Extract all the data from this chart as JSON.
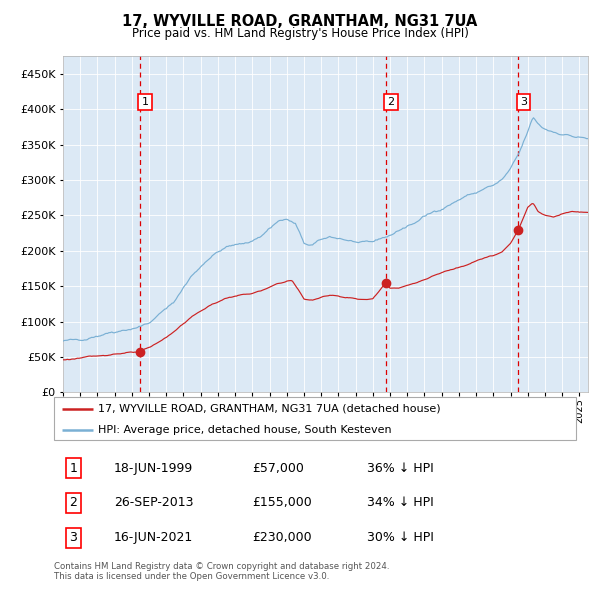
{
  "title": "17, WYVILLE ROAD, GRANTHAM, NG31 7UA",
  "subtitle": "Price paid vs. HM Land Registry's House Price Index (HPI)",
  "legend_line1": "17, WYVILLE ROAD, GRANTHAM, NG31 7UA (detached house)",
  "legend_line2": "HPI: Average price, detached house, South Kesteven",
  "transactions": [
    {
      "label": "1",
      "date_num": 1999.458,
      "price": 57000,
      "date_str": "18-JUN-1999",
      "note": "36% ↓ HPI"
    },
    {
      "label": "2",
      "date_num": 2013.736,
      "price": 155000,
      "date_str": "26-SEP-2013",
      "note": "34% ↓ HPI"
    },
    {
      "label": "3",
      "date_num": 2021.458,
      "price": 230000,
      "date_str": "16-JUN-2021",
      "note": "30% ↓ HPI"
    }
  ],
  "footer1": "Contains HM Land Registry data © Crown copyright and database right 2024.",
  "footer2": "This data is licensed under the Open Government Licence v3.0.",
  "hpi_color": "#7ab0d4",
  "price_color": "#cc2222",
  "dashed_color": "#dd0000",
  "plot_bg": "#dce9f5",
  "ylim": [
    0,
    475000
  ],
  "yticks": [
    0,
    50000,
    100000,
    150000,
    200000,
    250000,
    300000,
    350000,
    400000,
    450000
  ],
  "xlim_start": 1995.0,
  "xlim_end": 2025.5
}
